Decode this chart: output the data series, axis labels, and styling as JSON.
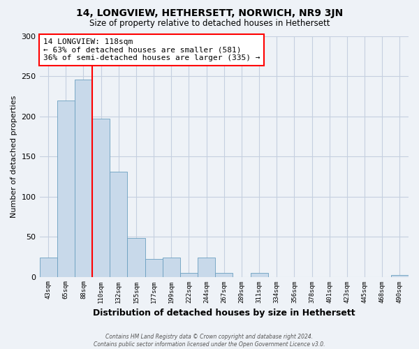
{
  "title": "14, LONGVIEW, HETHERSETT, NORWICH, NR9 3JN",
  "subtitle": "Size of property relative to detached houses in Hethersett",
  "xlabel": "Distribution of detached houses by size in Hethersett",
  "ylabel": "Number of detached properties",
  "bin_labels": [
    "43sqm",
    "65sqm",
    "88sqm",
    "110sqm",
    "132sqm",
    "155sqm",
    "177sqm",
    "199sqm",
    "222sqm",
    "244sqm",
    "267sqm",
    "289sqm",
    "311sqm",
    "334sqm",
    "356sqm",
    "378sqm",
    "401sqm",
    "423sqm",
    "445sqm",
    "468sqm",
    "490sqm"
  ],
  "bar_heights": [
    24,
    220,
    246,
    197,
    131,
    48,
    22,
    24,
    5,
    24,
    5,
    0,
    5,
    0,
    0,
    0,
    0,
    0,
    0,
    0,
    2
  ],
  "bar_color": "#c8d9ea",
  "bar_edge_color": "#6a9fc0",
  "vline_x_index": 2,
  "vline_color": "red",
  "annotation_text": "14 LONGVIEW: 118sqm\n← 63% of detached houses are smaller (581)\n36% of semi-detached houses are larger (335) →",
  "annotation_box_color": "white",
  "annotation_box_edge_color": "red",
  "ylim": [
    0,
    300
  ],
  "yticks": [
    0,
    50,
    100,
    150,
    200,
    250,
    300
  ],
  "footer_line1": "Contains HM Land Registry data © Crown copyright and database right 2024.",
  "footer_line2": "Contains public sector information licensed under the Open Government Licence v3.0.",
  "background_color": "#eef2f7",
  "plot_background_color": "#eef2f7",
  "grid_color": "#c5cfe0"
}
